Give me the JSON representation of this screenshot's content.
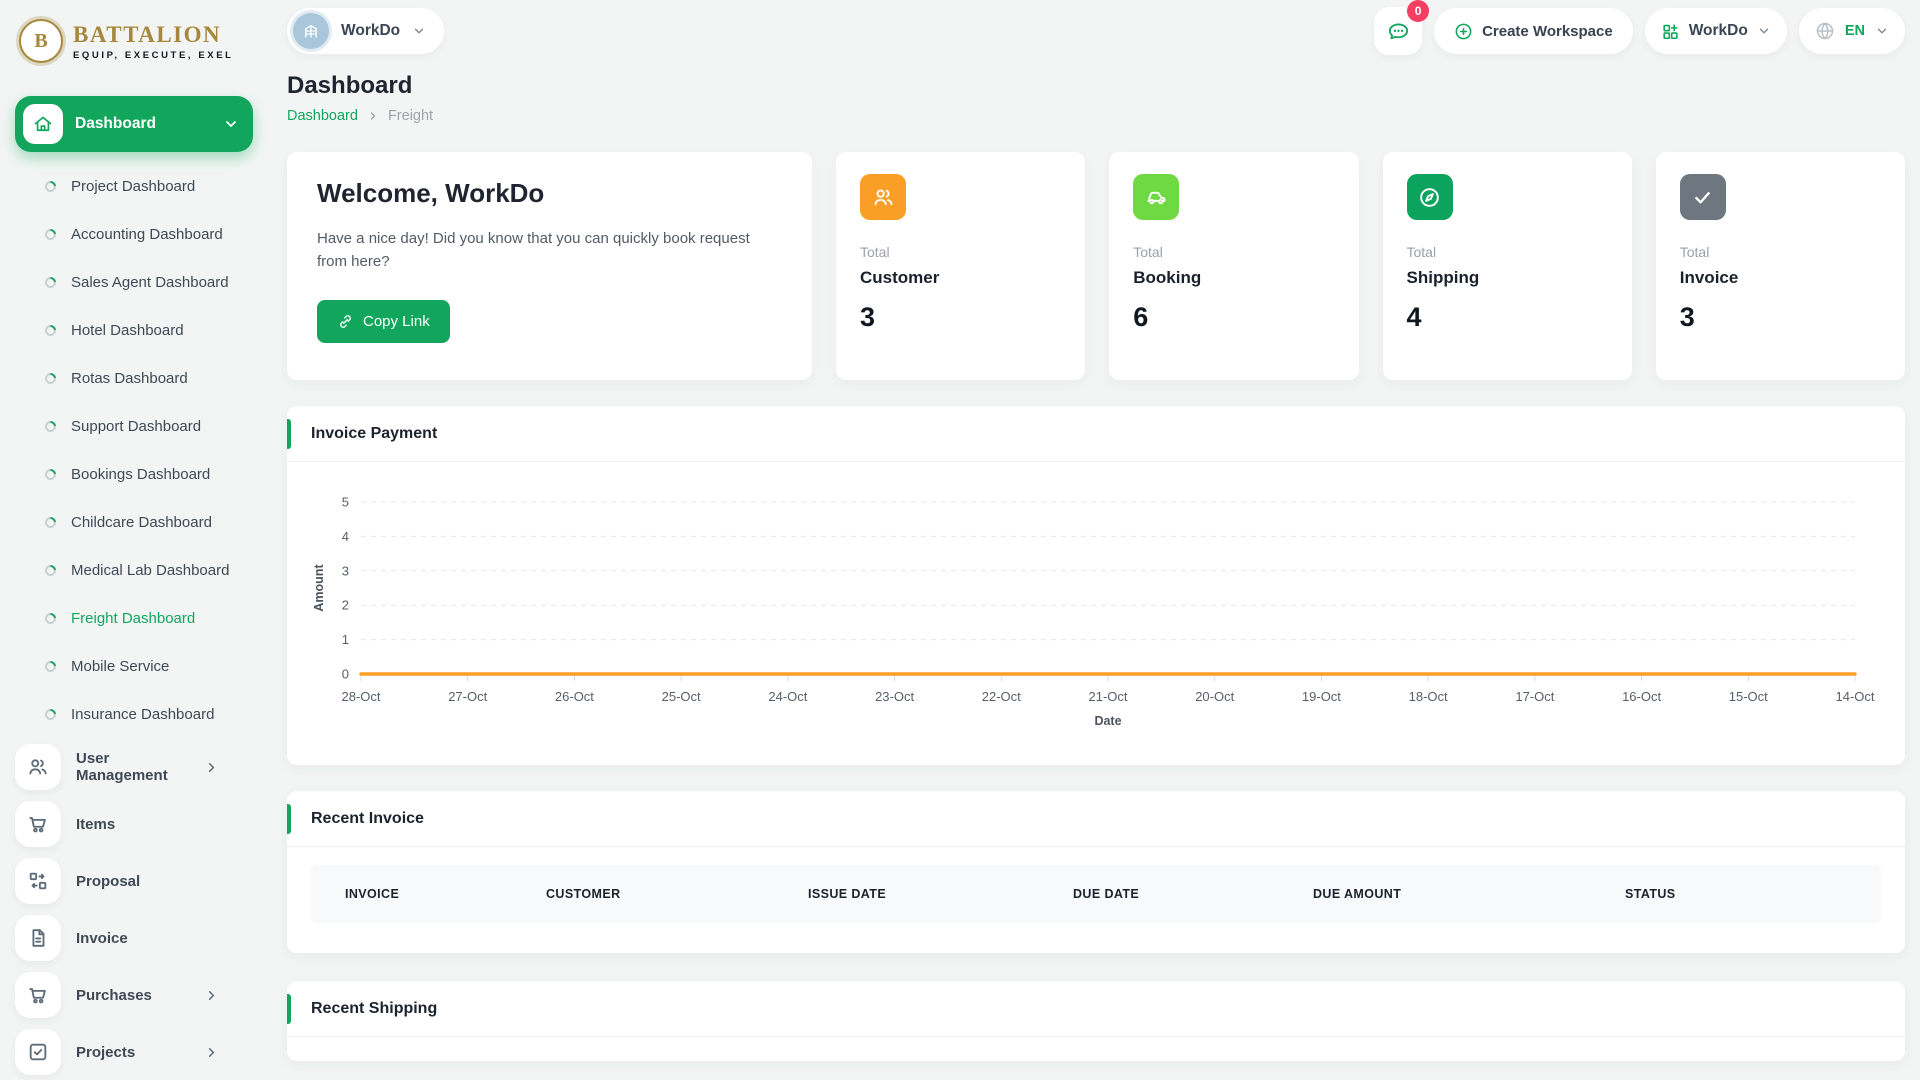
{
  "brand": {
    "name": "BATTALION",
    "tagline": "EQUIP, EXECUTE, EXEL",
    "monogram": "B"
  },
  "topbar": {
    "workspace_pill": {
      "label": "WorkDo"
    },
    "messages_badge": "0",
    "create_workspace_label": "Create Workspace",
    "workspace_menu_label": "WorkDo",
    "language": "EN"
  },
  "sidebar": {
    "dashboard_label": "Dashboard",
    "sub_items": [
      {
        "label": "Project Dashboard",
        "active": false
      },
      {
        "label": "Accounting Dashboard",
        "active": false
      },
      {
        "label": "Sales Agent Dashboard",
        "active": false
      },
      {
        "label": "Hotel Dashboard",
        "active": false
      },
      {
        "label": "Rotas Dashboard",
        "active": false
      },
      {
        "label": "Support Dashboard",
        "active": false
      },
      {
        "label": "Bookings Dashboard",
        "active": false
      },
      {
        "label": "Childcare Dashboard",
        "active": false
      },
      {
        "label": "Medical Lab Dashboard",
        "active": false
      },
      {
        "label": "Freight Dashboard",
        "active": true
      },
      {
        "label": "Mobile Service",
        "active": false
      },
      {
        "label": "Insurance Dashboard",
        "active": false
      }
    ],
    "menu_items": [
      {
        "label": "User Management",
        "icon": "users",
        "chevron": true
      },
      {
        "label": "Items",
        "icon": "cart",
        "chevron": false
      },
      {
        "label": "Proposal",
        "icon": "proposal",
        "chevron": false
      },
      {
        "label": "Invoice",
        "icon": "file",
        "chevron": false
      },
      {
        "label": "Purchases",
        "icon": "cart",
        "chevron": true
      },
      {
        "label": "Projects",
        "icon": "check-square",
        "chevron": true
      }
    ]
  },
  "page": {
    "title": "Dashboard",
    "breadcrumb_root": "Dashboard",
    "breadcrumb_current": "Freight"
  },
  "welcome": {
    "title": "Welcome, WorkDo",
    "message": "Have a nice day! Did you know that you can quickly book request from here?",
    "button_label": "Copy Link"
  },
  "stats": [
    {
      "prefix": "Total",
      "label": "Customer",
      "value": "3",
      "color": "#fb9e25",
      "icon": "users"
    },
    {
      "prefix": "Total",
      "label": "Booking",
      "value": "6",
      "color": "#6fd943",
      "icon": "car"
    },
    {
      "prefix": "Total",
      "label": "Shipping",
      "value": "4",
      "color": "#0ca35f",
      "icon": "compass"
    },
    {
      "prefix": "Total",
      "label": "Invoice",
      "value": "3",
      "color": "#6e7680",
      "icon": "check"
    }
  ],
  "invoice_payment": {
    "title": "Invoice Payment"
  },
  "chart_data": {
    "type": "line",
    "title": "Invoice Payment",
    "x": [
      "28-Oct",
      "27-Oct",
      "26-Oct",
      "25-Oct",
      "24-Oct",
      "23-Oct",
      "22-Oct",
      "21-Oct",
      "20-Oct",
      "19-Oct",
      "18-Oct",
      "17-Oct",
      "16-Oct",
      "15-Oct",
      "14-Oct"
    ],
    "series": [
      {
        "name": "Amount",
        "color": "#fb9e25",
        "values": [
          0,
          0,
          0,
          0,
          0,
          0,
          0,
          0,
          0,
          0,
          0,
          0,
          0,
          0,
          0
        ]
      }
    ],
    "xlabel": "Date",
    "ylabel": "Amount",
    "ylim": [
      0,
      5
    ],
    "yticks": [
      0,
      1,
      2,
      3,
      4,
      5
    ],
    "grid": "dashed-horizontal",
    "legend": "none"
  },
  "recent_invoice": {
    "title": "Recent Invoice",
    "columns": [
      "INVOICE",
      "CUSTOMER",
      "ISSUE DATE",
      "DUE DATE",
      "DUE AMOUNT",
      "STATUS"
    ],
    "rows": []
  },
  "recent_shipping": {
    "title": "Recent Shipping"
  }
}
